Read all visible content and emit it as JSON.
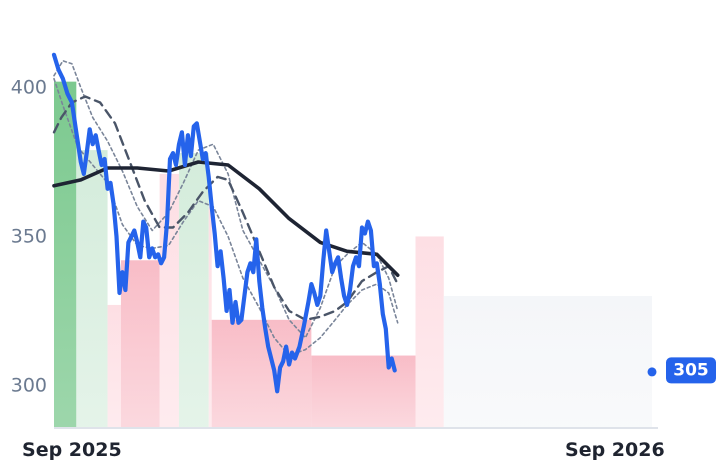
{
  "chart_data": {
    "type": "line",
    "title": "",
    "xlabel": "",
    "ylabel": "",
    "ylim": [
      286,
      418
    ],
    "xlim": [
      "2025-08-20",
      "2026-09-30"
    ],
    "y_ticks": [
      {
        "value": 300,
        "label": "300"
      },
      {
        "value": 350,
        "label": "350"
      },
      {
        "value": 400,
        "label": "400"
      }
    ],
    "x_ticks": [
      {
        "date": "2025-09-01",
        "label": "Sep 2025"
      },
      {
        "date": "2026-09-01",
        "label": "Sep 2026"
      }
    ],
    "grid": false,
    "legend": "none",
    "last_value_label": "305",
    "colors": {
      "price": "#2563eb",
      "long_ma": "#1e2433",
      "mid_ma": "#4a5568",
      "band": "#7a8599",
      "badge": "#2563eb",
      "axis": "#dfe3ea",
      "strong_up": "#7cc98f",
      "up": "#cfead7",
      "down": "#f8b9c4",
      "weak_down": "#fddbe1",
      "neutral": "#f3f5f8"
    },
    "regime_bands": [
      {
        "start": "2025-08-20",
        "end": "2025-09-04",
        "kind": "strong_up",
        "level": 402
      },
      {
        "start": "2025-09-04",
        "end": "2025-09-25",
        "kind": "up",
        "level": 379
      },
      {
        "start": "2025-09-25",
        "end": "2025-10-04",
        "kind": "weak_down",
        "level": 327
      },
      {
        "start": "2025-10-04",
        "end": "2025-10-30",
        "kind": "down",
        "level": 342
      },
      {
        "start": "2025-10-30",
        "end": "2025-11-12",
        "kind": "weak_down",
        "level": 371
      },
      {
        "start": "2025-11-12",
        "end": "2025-12-02",
        "kind": "up",
        "level": 378
      },
      {
        "start": "2025-12-02",
        "end": "2025-12-04",
        "kind": "weak_down",
        "level": 360
      },
      {
        "start": "2025-12-04",
        "end": "2026-02-09",
        "kind": "down",
        "level": 322
      },
      {
        "start": "2026-02-09",
        "end": "2026-04-20",
        "kind": "down",
        "level": 310
      },
      {
        "start": "2026-04-20",
        "end": "2026-05-09",
        "kind": "weak_down",
        "level": 350
      },
      {
        "start": "2026-05-09",
        "end": "2026-09-30",
        "kind": "neutral",
        "level": 330
      }
    ],
    "series": [
      {
        "role": "price",
        "points": [
          [
            "2025-08-20",
            411
          ],
          [
            "2025-08-23",
            406
          ],
          [
            "2025-08-26",
            403
          ],
          [
            "2025-08-29",
            398
          ],
          [
            "2025-09-01",
            395
          ],
          [
            "2025-09-04",
            385
          ],
          [
            "2025-09-07",
            375
          ],
          [
            "2025-09-09",
            371
          ],
          [
            "2025-09-11",
            378
          ],
          [
            "2025-09-13",
            386
          ],
          [
            "2025-09-15",
            381
          ],
          [
            "2025-09-17",
            384
          ],
          [
            "2025-09-19",
            379
          ],
          [
            "2025-09-21",
            374
          ],
          [
            "2025-09-23",
            376
          ],
          [
            "2025-09-25",
            366
          ],
          [
            "2025-09-27",
            368
          ],
          [
            "2025-09-29",
            361
          ],
          [
            "2025-10-01",
            350
          ],
          [
            "2025-10-03",
            331
          ],
          [
            "2025-10-05",
            338
          ],
          [
            "2025-10-07",
            332
          ],
          [
            "2025-10-09",
            348
          ],
          [
            "2025-10-11",
            350
          ],
          [
            "2025-10-13",
            352
          ],
          [
            "2025-10-15",
            348
          ],
          [
            "2025-10-17",
            343
          ],
          [
            "2025-10-19",
            355
          ],
          [
            "2025-10-21",
            353
          ],
          [
            "2025-10-23",
            343
          ],
          [
            "2025-10-25",
            346
          ],
          [
            "2025-10-27",
            343
          ],
          [
            "2025-10-29",
            344
          ],
          [
            "2025-10-31",
            341
          ],
          [
            "2025-11-02",
            343
          ],
          [
            "2025-11-04",
            355
          ],
          [
            "2025-11-06",
            376
          ],
          [
            "2025-11-08",
            378
          ],
          [
            "2025-11-10",
            374
          ],
          [
            "2025-11-12",
            381
          ],
          [
            "2025-11-14",
            385
          ],
          [
            "2025-11-16",
            374
          ],
          [
            "2025-11-18",
            384
          ],
          [
            "2025-11-20",
            377
          ],
          [
            "2025-11-22",
            387
          ],
          [
            "2025-11-24",
            388
          ],
          [
            "2025-11-26",
            382
          ],
          [
            "2025-11-28",
            376
          ],
          [
            "2025-11-30",
            378
          ],
          [
            "2025-12-02",
            370
          ],
          [
            "2025-12-04",
            360
          ],
          [
            "2025-12-06",
            351
          ],
          [
            "2025-12-08",
            340
          ],
          [
            "2025-12-10",
            345
          ],
          [
            "2025-12-12",
            336
          ],
          [
            "2025-12-14",
            325
          ],
          [
            "2025-12-16",
            332
          ],
          [
            "2025-12-18",
            321
          ],
          [
            "2025-12-20",
            328
          ],
          [
            "2025-12-22",
            321
          ],
          [
            "2025-12-24",
            322
          ],
          [
            "2025-12-26",
            330
          ],
          [
            "2025-12-28",
            338
          ],
          [
            "2025-12-30",
            341
          ],
          [
            "2026-01-01",
            338
          ],
          [
            "2026-01-03",
            349
          ],
          [
            "2026-01-05",
            335
          ],
          [
            "2026-01-07",
            326
          ],
          [
            "2026-01-09",
            319
          ],
          [
            "2026-01-11",
            313
          ],
          [
            "2026-01-13",
            309
          ],
          [
            "2026-01-15",
            305
          ],
          [
            "2026-01-17",
            298
          ],
          [
            "2026-01-19",
            306
          ],
          [
            "2026-01-21",
            308
          ],
          [
            "2026-01-23",
            313
          ],
          [
            "2026-01-25",
            307
          ],
          [
            "2026-01-27",
            311
          ],
          [
            "2026-01-29",
            309
          ],
          [
            "2026-02-01",
            313
          ],
          [
            "2026-02-04",
            320
          ],
          [
            "2026-02-07",
            328
          ],
          [
            "2026-02-09",
            334
          ],
          [
            "2026-02-11",
            331
          ],
          [
            "2026-02-13",
            327
          ],
          [
            "2026-02-15",
            330
          ],
          [
            "2026-02-17",
            342
          ],
          [
            "2026-02-19",
            352
          ],
          [
            "2026-02-21",
            345
          ],
          [
            "2026-02-23",
            338
          ],
          [
            "2026-02-25",
            341
          ],
          [
            "2026-02-27",
            343
          ],
          [
            "2026-03-01",
            336
          ],
          [
            "2026-03-03",
            330
          ],
          [
            "2026-03-05",
            327
          ],
          [
            "2026-03-07",
            332
          ],
          [
            "2026-03-09",
            340
          ],
          [
            "2026-03-11",
            343
          ],
          [
            "2026-03-13",
            340
          ],
          [
            "2026-03-15",
            353
          ],
          [
            "2026-03-17",
            351
          ],
          [
            "2026-03-19",
            355
          ],
          [
            "2026-03-21",
            352
          ],
          [
            "2026-03-23",
            340
          ],
          [
            "2026-03-25",
            341
          ],
          [
            "2026-03-27",
            334
          ],
          [
            "2026-03-29",
            324
          ],
          [
            "2026-03-31",
            319
          ],
          [
            "2026-04-02",
            306
          ],
          [
            "2026-04-04",
            309
          ],
          [
            "2026-04-06",
            305
          ]
        ]
      },
      {
        "role": "long_ma",
        "points": [
          [
            "2025-08-20",
            367
          ],
          [
            "2025-09-07",
            369
          ],
          [
            "2025-09-25",
            373
          ],
          [
            "2025-10-15",
            373
          ],
          [
            "2025-11-05",
            372
          ],
          [
            "2025-11-25",
            375
          ],
          [
            "2025-12-15",
            374
          ],
          [
            "2026-01-05",
            366
          ],
          [
            "2026-01-25",
            356
          ],
          [
            "2026-02-15",
            348
          ],
          [
            "2026-03-05",
            345
          ],
          [
            "2026-03-25",
            344
          ],
          [
            "2026-04-08",
            337
          ]
        ]
      },
      {
        "role": "mid_ma",
        "points": [
          [
            "2025-08-20",
            385
          ],
          [
            "2025-08-25",
            390
          ],
          [
            "2025-09-01",
            395
          ],
          [
            "2025-09-10",
            397
          ],
          [
            "2025-09-20",
            395
          ],
          [
            "2025-09-30",
            388
          ],
          [
            "2025-10-10",
            375
          ],
          [
            "2025-10-20",
            362
          ],
          [
            "2025-10-30",
            353
          ],
          [
            "2025-11-08",
            353
          ],
          [
            "2025-11-18",
            358
          ],
          [
            "2025-11-28",
            365
          ],
          [
            "2025-12-08",
            370
          ],
          [
            "2025-12-15",
            369
          ],
          [
            "2025-12-25",
            358
          ],
          [
            "2026-01-05",
            345
          ],
          [
            "2026-01-15",
            333
          ],
          [
            "2026-01-25",
            325
          ],
          [
            "2026-02-05",
            322
          ],
          [
            "2026-02-15",
            323
          ],
          [
            "2026-02-25",
            325
          ],
          [
            "2026-03-05",
            328
          ],
          [
            "2026-03-15",
            335
          ],
          [
            "2026-03-25",
            338
          ],
          [
            "2026-04-02",
            340
          ],
          [
            "2026-04-08",
            334
          ]
        ]
      },
      {
        "role": "band_upper",
        "points": [
          [
            "2025-08-20",
            404
          ],
          [
            "2025-08-26",
            409
          ],
          [
            "2025-09-01",
            408
          ],
          [
            "2025-09-07",
            400
          ],
          [
            "2025-09-15",
            390
          ],
          [
            "2025-09-25",
            382
          ],
          [
            "2025-10-05",
            372
          ],
          [
            "2025-10-15",
            360
          ],
          [
            "2025-10-25",
            352
          ],
          [
            "2025-11-05",
            358
          ],
          [
            "2025-11-15",
            368
          ],
          [
            "2025-11-25",
            379
          ],
          [
            "2025-12-05",
            381
          ],
          [
            "2025-12-15",
            371
          ],
          [
            "2025-12-25",
            352
          ],
          [
            "2026-01-05",
            342
          ],
          [
            "2026-01-15",
            333
          ],
          [
            "2026-01-25",
            322
          ],
          [
            "2026-02-05",
            316
          ],
          [
            "2026-02-15",
            326
          ],
          [
            "2026-02-25",
            340
          ],
          [
            "2026-03-05",
            344
          ],
          [
            "2026-03-15",
            348
          ],
          [
            "2026-03-25",
            344
          ],
          [
            "2026-04-02",
            336
          ],
          [
            "2026-04-08",
            325
          ]
        ]
      },
      {
        "role": "band_lower",
        "points": [
          [
            "2025-08-20",
            403
          ],
          [
            "2025-08-26",
            394
          ],
          [
            "2025-09-05",
            380
          ],
          [
            "2025-09-15",
            374
          ],
          [
            "2025-09-25",
            368
          ],
          [
            "2025-10-05",
            354
          ],
          [
            "2025-10-15",
            347
          ],
          [
            "2025-10-25",
            346
          ],
          [
            "2025-11-05",
            347
          ],
          [
            "2025-11-15",
            355
          ],
          [
            "2025-11-25",
            362
          ],
          [
            "2025-12-05",
            360
          ],
          [
            "2025-12-15",
            350
          ],
          [
            "2025-12-25",
            336
          ],
          [
            "2026-01-05",
            326
          ],
          [
            "2026-01-15",
            316
          ],
          [
            "2026-01-25",
            310
          ],
          [
            "2026-02-05",
            312
          ],
          [
            "2026-02-15",
            316
          ],
          [
            "2026-02-25",
            322
          ],
          [
            "2026-03-05",
            327
          ],
          [
            "2026-03-15",
            332
          ],
          [
            "2026-03-25",
            334
          ],
          [
            "2026-04-02",
            331
          ],
          [
            "2026-04-08",
            321
          ]
        ]
      }
    ]
  }
}
